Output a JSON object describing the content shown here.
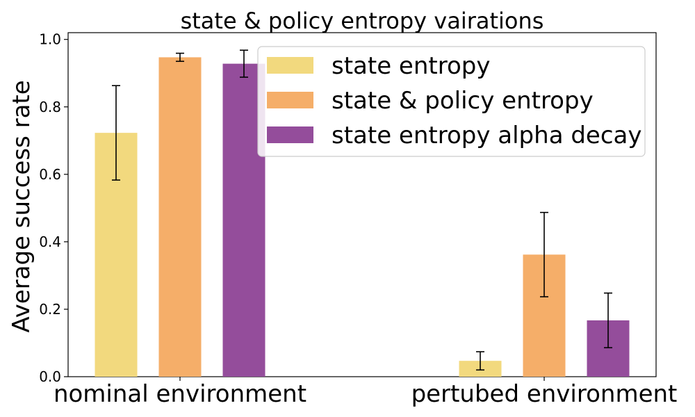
{
  "chart_data": {
    "type": "bar",
    "title": "state & policy entropy vairations",
    "xlabel": "",
    "ylabel": "Average success rate",
    "ylim": [
      0,
      1.02
    ],
    "yticks": [
      "0.0",
      "0.2",
      "0.4",
      "0.6",
      "0.8",
      "1.0"
    ],
    "categories": [
      "nominal environment",
      "pertubed environment"
    ],
    "series": [
      {
        "name": "state entropy",
        "color": "#f2d97e",
        "values": [
          0.723,
          0.047
        ],
        "errors": [
          0.14,
          0.027
        ]
      },
      {
        "name": "state & policy entropy",
        "color": "#f5ae69",
        "values": [
          0.947,
          0.362
        ],
        "errors": [
          0.012,
          0.125
        ]
      },
      {
        "name": "state entropy alpha decay",
        "color": "#944d9b",
        "values": [
          0.928,
          0.167
        ],
        "errors": [
          0.04,
          0.081
        ]
      }
    ],
    "legend_position": "top-right",
    "grid": false
  }
}
